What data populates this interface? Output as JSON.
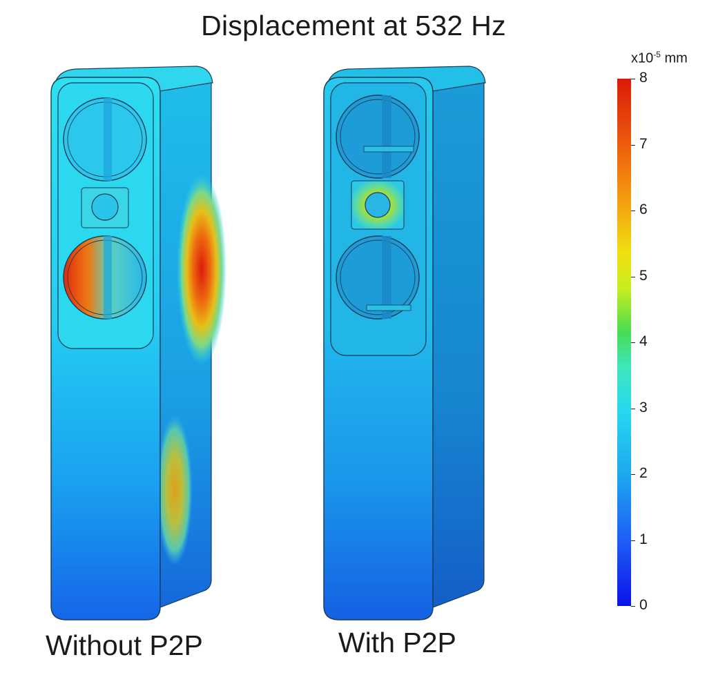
{
  "title": "Displacement at 532 Hz",
  "panels": [
    {
      "label": "Without P2P"
    },
    {
      "label": "With P2P"
    }
  ],
  "colorbar": {
    "unit_prefix": "x10",
    "unit_exp": "-5",
    "unit_suffix": " mm",
    "min": 0,
    "max": 8,
    "ticks": [
      "0",
      "1",
      "2",
      "3",
      "4",
      "5",
      "6",
      "7",
      "8"
    ]
  },
  "colors": {
    "low": "#0a12e8",
    "mid": "#27d8f0",
    "high": "#dc1a0a"
  }
}
